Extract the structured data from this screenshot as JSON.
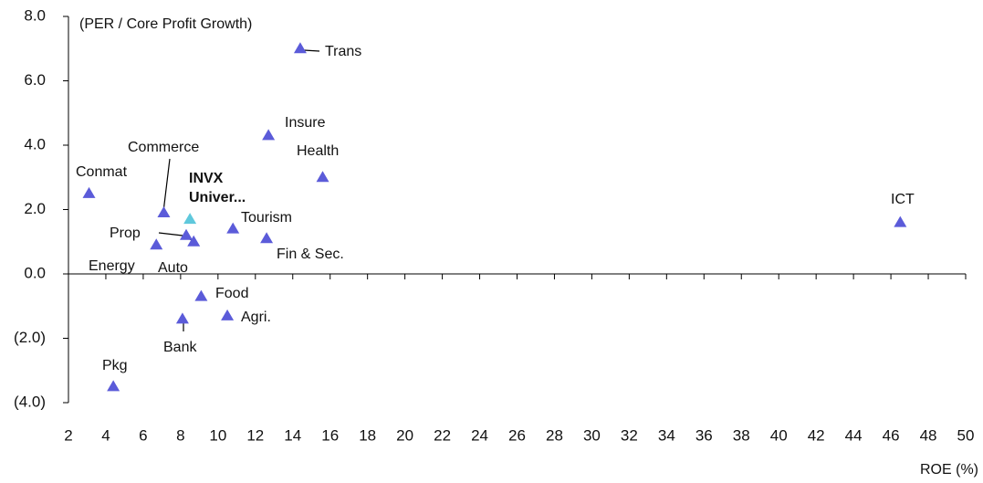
{
  "chart_data": {
    "type": "scatter",
    "annotation": "(PER / Core Profit Growth)",
    "x_label": "ROE (%)",
    "labels": [
      "Trans",
      "Insure",
      "Health",
      "Conmat",
      "Commerce",
      "INVX Univer...",
      "Tourism",
      "Fin & Sec.",
      "Prop",
      "Auto",
      "Energy",
      "ICT",
      "Food",
      "Agri.",
      "Bank",
      "Pkg"
    ],
    "x": [
      14.4,
      12.7,
      15.6,
      3.1,
      7.1,
      8.5,
      10.8,
      12.6,
      8.3,
      8.7,
      6.7,
      46.5,
      9.1,
      10.5,
      8.1,
      4.4
    ],
    "y": [
      7.0,
      4.3,
      3.0,
      2.5,
      1.9,
      1.7,
      1.4,
      1.1,
      1.2,
      1.0,
      0.9,
      1.6,
      -0.7,
      -1.3,
      -1.4,
      -3.5
    ],
    "colors": [
      "#5b5bd9",
      "#5b5bd9",
      "#5b5bd9",
      "#5b5bd9",
      "#5b5bd9",
      "#5fc8dc",
      "#5b5bd9",
      "#5b5bd9",
      "#5b5bd9",
      "#5b5bd9",
      "#5b5bd9",
      "#5b5bd9",
      "#5b5bd9",
      "#5b5bd9",
      "#5b5bd9",
      "#5b5bd9"
    ],
    "xlim": [
      2,
      50
    ],
    "xticks": [
      2,
      4,
      6,
      8,
      10,
      12,
      14,
      16,
      18,
      20,
      22,
      24,
      26,
      28,
      30,
      32,
      34,
      36,
      38,
      40,
      42,
      44,
      46,
      48,
      50
    ],
    "ylim": [
      -4,
      8
    ],
    "yticks": [
      {
        "value": 8,
        "label": "8.0"
      },
      {
        "value": 6,
        "label": "6.0"
      },
      {
        "value": 4,
        "label": "4.0"
      },
      {
        "value": 2,
        "label": "2.0"
      },
      {
        "value": 0,
        "label": "0.0"
      },
      {
        "value": -2,
        "label": "(2.0)"
      },
      {
        "value": -4,
        "label": "(4.0)"
      }
    ]
  }
}
